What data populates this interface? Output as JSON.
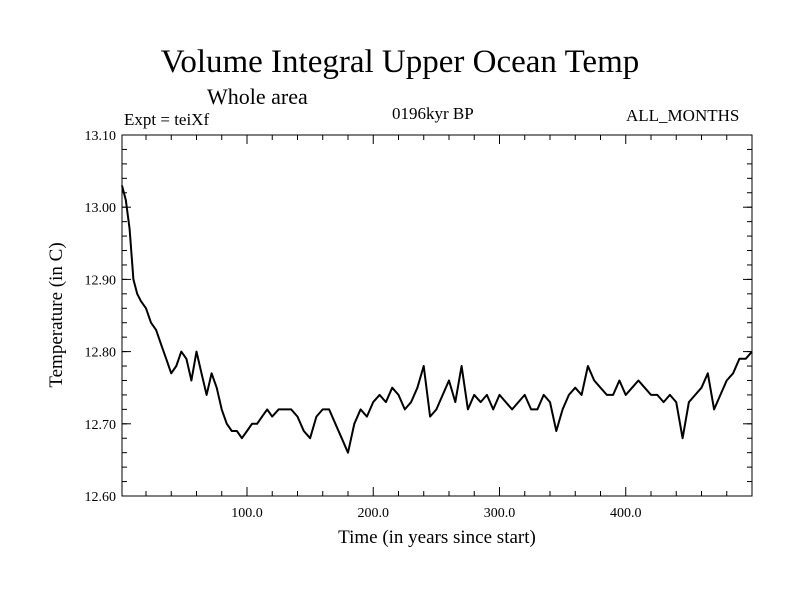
{
  "header": {
    "title": "Volume Integral Upper Ocean Temp",
    "subtitle": "Whole area",
    "experiment": "Expt = teiXf",
    "period": "0196kyr BP",
    "months": "ALL_MONTHS"
  },
  "chart_data": {
    "type": "line",
    "title": "Volume Integral Upper Ocean Temp",
    "subtitle": "Whole area",
    "xlabel": "Time (in years since start)",
    "ylabel": "Temperature (in C)",
    "xlim": [
      1,
      500
    ],
    "ylim": [
      12.6,
      13.1
    ],
    "grid": false,
    "x_ticks": [
      100,
      200,
      300,
      400
    ],
    "x_tick_labels": [
      "100.0",
      "200.0",
      "300.0",
      "400.0"
    ],
    "y_ticks": [
      12.6,
      12.7,
      12.8,
      12.9,
      13.0,
      13.1
    ],
    "y_tick_labels": [
      "12.60",
      "12.70",
      "12.80",
      "12.90",
      "13.00",
      "13.10"
    ],
    "line_color": "#000000",
    "series": [
      {
        "name": "teiXf",
        "x": [
          1,
          4,
          7,
          10,
          13,
          16,
          20,
          24,
          28,
          32,
          36,
          40,
          44,
          48,
          52,
          56,
          60,
          64,
          68,
          72,
          76,
          80,
          84,
          88,
          92,
          96,
          100,
          104,
          108,
          112,
          116,
          120,
          125,
          130,
          135,
          140,
          145,
          150,
          155,
          160,
          165,
          170,
          175,
          180,
          185,
          190,
          195,
          200,
          205,
          210,
          215,
          220,
          225,
          230,
          235,
          240,
          245,
          250,
          255,
          260,
          265,
          270,
          275,
          280,
          285,
          290,
          295,
          300,
          305,
          310,
          315,
          320,
          325,
          330,
          335,
          340,
          345,
          350,
          355,
          360,
          365,
          370,
          375,
          380,
          385,
          390,
          395,
          400,
          405,
          410,
          415,
          420,
          425,
          430,
          435,
          440,
          445,
          450,
          455,
          460,
          465,
          470,
          475,
          480,
          485,
          490,
          495,
          500
        ],
        "values": [
          13.03,
          13.01,
          12.97,
          12.9,
          12.88,
          12.87,
          12.86,
          12.84,
          12.83,
          12.81,
          12.79,
          12.77,
          12.78,
          12.8,
          12.79,
          12.76,
          12.8,
          12.77,
          12.74,
          12.77,
          12.75,
          12.72,
          12.7,
          12.69,
          12.69,
          12.68,
          12.69,
          12.7,
          12.7,
          12.71,
          12.72,
          12.71,
          12.72,
          12.72,
          12.72,
          12.71,
          12.69,
          12.68,
          12.71,
          12.72,
          12.72,
          12.7,
          12.68,
          12.66,
          12.7,
          12.72,
          12.71,
          12.73,
          12.74,
          12.73,
          12.75,
          12.74,
          12.72,
          12.73,
          12.75,
          12.78,
          12.71,
          12.72,
          12.74,
          12.76,
          12.73,
          12.78,
          12.72,
          12.74,
          12.73,
          12.74,
          12.72,
          12.74,
          12.73,
          12.72,
          12.73,
          12.74,
          12.72,
          12.72,
          12.74,
          12.73,
          12.69,
          12.72,
          12.74,
          12.75,
          12.74,
          12.78,
          12.76,
          12.75,
          12.74,
          12.74,
          12.76,
          12.74,
          12.75,
          12.76,
          12.75,
          12.74,
          12.74,
          12.73,
          12.74,
          12.73,
          12.68,
          12.73,
          12.74,
          12.75,
          12.77,
          12.72,
          12.74,
          12.76,
          12.77,
          12.79,
          12.79,
          12.8
        ]
      }
    ]
  }
}
